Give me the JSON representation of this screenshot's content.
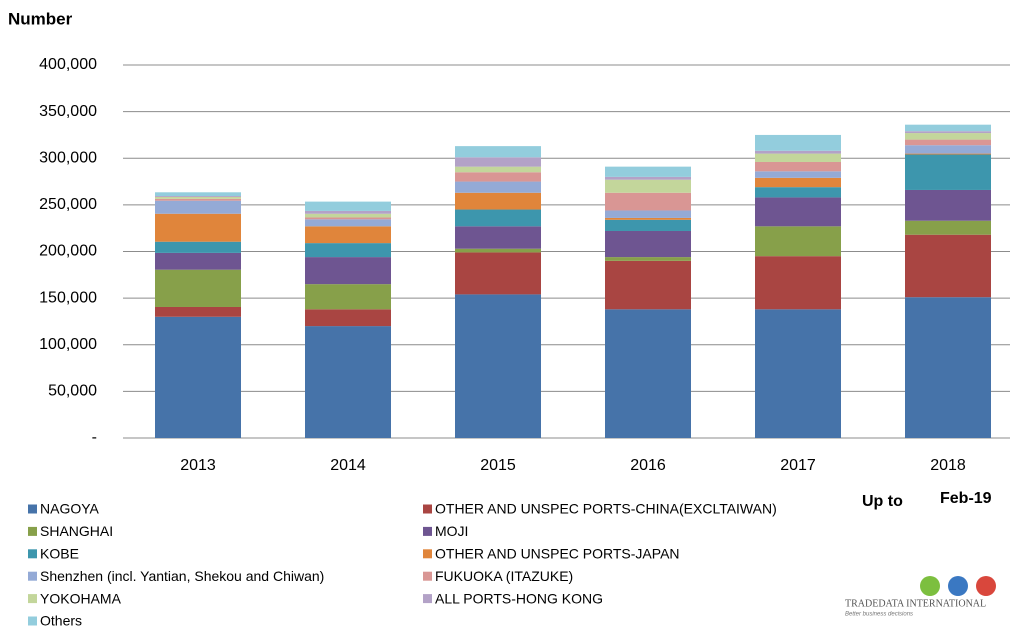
{
  "chart_data": {
    "type": "stacked_bar",
    "y_label": "Number",
    "annotations": [
      "Up to",
      "Feb-19"
    ],
    "logo": {
      "name": "TRADEDATA INTERNATIONAL",
      "tagline": "Better business decisions"
    },
    "categories": [
      "2013",
      "2014",
      "2015",
      "2016",
      "2017",
      "2018"
    ],
    "series": [
      {
        "name": "NAGOYA",
        "color": "#4673a9",
        "values": [
          130000,
          120000,
          154000,
          138000,
          138000,
          151000
        ]
      },
      {
        "name": "OTHER AND UNSPEC PORTS-CHINA(EXCLTAIWAN)",
        "color": "#a94542",
        "values": [
          10500,
          18000,
          45000,
          52000,
          57000,
          67000
        ]
      },
      {
        "name": "SHANGHAI",
        "color": "#87a04a",
        "values": [
          40000,
          27000,
          4000,
          4000,
          32000,
          15000
        ]
      },
      {
        "name": "MOJI",
        "color": "#6e5591",
        "values": [
          18000,
          29000,
          24000,
          28000,
          31000,
          33000
        ]
      },
      {
        "name": "KOBE",
        "color": "#3d96ad",
        "values": [
          12000,
          15000,
          18000,
          12000,
          11000,
          38000
        ]
      },
      {
        "name": "OTHER AND UNSPEC PORTS-JAPAN",
        "color": "#e0853b",
        "values": [
          30000,
          18000,
          18000,
          2000,
          10000,
          1000
        ]
      },
      {
        "name": "Shenzhen (incl. Yantian, Shekou and Chiwan)",
        "color": "#94aad6",
        "values": [
          14000,
          7500,
          12000,
          8000,
          7000,
          9000
        ]
      },
      {
        "name": "FUKUOKA (ITAZUKE)",
        "color": "#d99694",
        "values": [
          2000,
          2000,
          10000,
          19000,
          10000,
          6000
        ]
      },
      {
        "name": "YOKOHAMA",
        "color": "#c3d69b",
        "values": [
          2000,
          4000,
          6000,
          14000,
          9000,
          7000
        ]
      },
      {
        "name": "ALL PORTS-HONG KONG",
        "color": "#b3a2c7",
        "values": [
          1000,
          3000,
          10000,
          3000,
          3000,
          2000
        ]
      },
      {
        "name": "Others",
        "color": "#93cddd",
        "values": [
          4000,
          10000,
          12000,
          11000,
          17000,
          7000
        ]
      }
    ],
    "ylim": [
      0,
      400000
    ],
    "yticks": [
      {
        "value": 0,
        "label": "-"
      },
      {
        "value": 50000,
        "label": "50,000"
      },
      {
        "value": 100000,
        "label": "100,000"
      },
      {
        "value": 150000,
        "label": "150,000"
      },
      {
        "value": 200000,
        "label": "200,000"
      },
      {
        "value": 250000,
        "label": "250,000"
      },
      {
        "value": 300000,
        "label": "300,000"
      },
      {
        "value": 350000,
        "label": "350,000"
      },
      {
        "value": 400000,
        "label": "400,000"
      }
    ],
    "grid": true
  }
}
